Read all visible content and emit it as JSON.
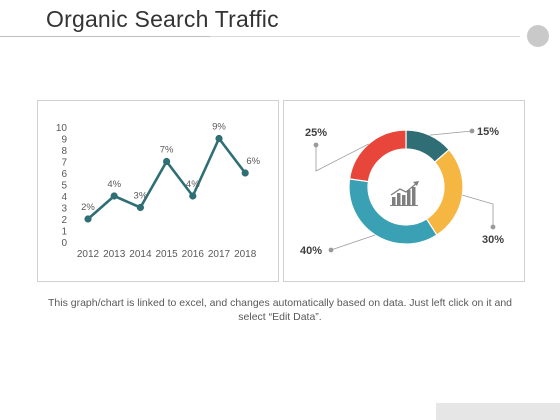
{
  "title": "Organic Search Traffic",
  "caption": "This graph/chart is linked to excel, and changes automatically based on data. Just left click on it and select “Edit Data”.",
  "icon": "bar-chart-trend-icon",
  "colors": {
    "line": "#2e6e74",
    "slice_teal": "#2e6e74",
    "slice_yellow": "#f5b642",
    "slice_blue": "#3aa1b5",
    "slice_red": "#e8463a"
  },
  "chart_data": [
    {
      "type": "line",
      "title": "",
      "xlabel": "",
      "ylabel": "",
      "x": [
        "2012",
        "2013",
        "2014",
        "2015",
        "2016",
        "2017",
        "2018"
      ],
      "values": [
        2,
        4,
        3,
        7,
        4,
        9,
        6
      ],
      "data_labels": [
        "2%",
        "4%",
        "3%",
        "7%",
        "4%",
        "9%",
        "6%"
      ],
      "y_ticks": [
        "0",
        "1",
        "2",
        "3",
        "4",
        "5",
        "6",
        "7",
        "8",
        "9",
        "10"
      ],
      "ylim": [
        0,
        10
      ],
      "grid": false,
      "legend": "none"
    },
    {
      "type": "pie",
      "title": "",
      "labels": [
        "15%",
        "30%",
        "40%",
        "25%"
      ],
      "values": [
        15,
        30,
        40,
        25
      ],
      "colors": [
        "#2e6e74",
        "#f5b642",
        "#3aa1b5",
        "#e8463a"
      ],
      "donut": true,
      "legend": "none"
    }
  ]
}
